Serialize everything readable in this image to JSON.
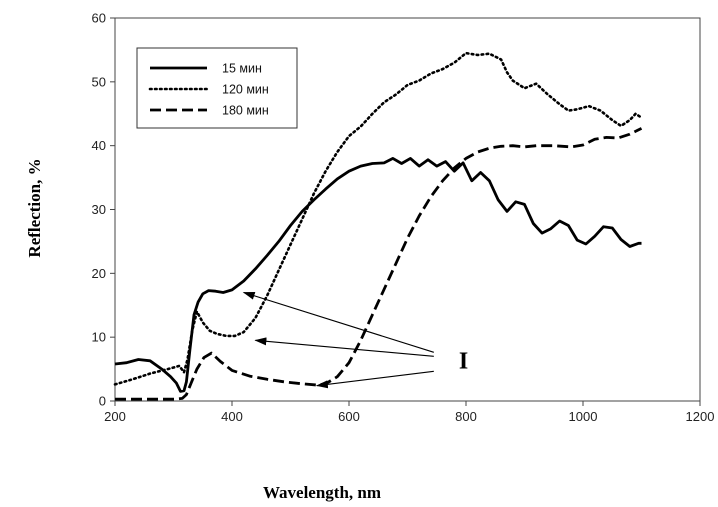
{
  "chart_data": {
    "type": "line",
    "xlabel": "Wavelength, nm",
    "ylabel": "Reflection, %",
    "xlim": [
      200,
      1200
    ],
    "ylim": [
      0,
      60
    ],
    "xticks": [
      200,
      400,
      600,
      800,
      1000,
      1200
    ],
    "yticks": [
      0,
      10,
      20,
      30,
      40,
      50,
      60
    ],
    "grid": false,
    "legend_position": "top-left",
    "annotation": {
      "label": "I",
      "arrow_origin": [
        745,
        7
      ],
      "arrow_targets": [
        [
          420,
          17
        ],
        [
          440,
          9.5
        ],
        [
          545,
          2.4
        ]
      ]
    },
    "series": [
      {
        "name": "15 мин",
        "style": "solid",
        "x": [
          200,
          220,
          240,
          260,
          280,
          295,
          305,
          312,
          318,
          322,
          328,
          335,
          342,
          350,
          360,
          372,
          385,
          400,
          420,
          440,
          460,
          480,
          500,
          520,
          540,
          560,
          580,
          600,
          620,
          640,
          660,
          675,
          690,
          705,
          720,
          735,
          750,
          765,
          780,
          795,
          810,
          825,
          840,
          855,
          870,
          885,
          900,
          915,
          930,
          945,
          960,
          975,
          990,
          1005,
          1020,
          1035,
          1050,
          1065,
          1080,
          1095,
          1100
        ],
        "values": [
          5.8,
          6.0,
          6.5,
          6.3,
          5.0,
          3.8,
          2.8,
          1.5,
          1.6,
          3.0,
          8.0,
          13.5,
          15.5,
          16.8,
          17.3,
          17.2,
          17.0,
          17.4,
          18.8,
          20.7,
          22.8,
          25.0,
          27.5,
          29.7,
          31.5,
          33.2,
          34.8,
          36.0,
          36.8,
          37.2,
          37.3,
          38.0,
          37.2,
          38.0,
          36.8,
          37.8,
          36.8,
          37.5,
          36.0,
          37.3,
          34.5,
          35.8,
          34.5,
          31.5,
          29.7,
          31.2,
          30.8,
          27.8,
          26.3,
          27.0,
          28.2,
          27.5,
          25.2,
          24.6,
          25.8,
          27.3,
          27.1,
          25.3,
          24.2,
          24.7,
          24.7
        ]
      },
      {
        "name": "120 мин",
        "style": "dotted",
        "x": [
          200,
          230,
          260,
          290,
          310,
          318,
          324,
          332,
          340,
          350,
          362,
          375,
          390,
          405,
          420,
          440,
          460,
          480,
          500,
          520,
          540,
          560,
          580,
          600,
          620,
          640,
          660,
          680,
          700,
          720,
          740,
          760,
          780,
          800,
          820,
          840,
          860,
          870,
          880,
          900,
          920,
          940,
          960,
          975,
          990,
          1010,
          1030,
          1050,
          1065,
          1080,
          1090,
          1100
        ],
        "values": [
          2.6,
          3.4,
          4.3,
          5.0,
          5.5,
          4.5,
          6.5,
          11.0,
          14.0,
          12.3,
          11.0,
          10.5,
          10.2,
          10.2,
          10.8,
          13.0,
          16.5,
          20.5,
          24.5,
          28.5,
          32.5,
          36.0,
          39.0,
          41.5,
          43.0,
          45.0,
          46.8,
          48.0,
          49.5,
          50.2,
          51.3,
          52.0,
          53.0,
          54.5,
          54.2,
          54.4,
          53.5,
          51.5,
          50.2,
          49.0,
          49.7,
          48.0,
          46.5,
          45.5,
          45.7,
          46.2,
          45.5,
          44.0,
          43.1,
          44.0,
          45.0,
          44.4
        ]
      },
      {
        "name": "180 мин",
        "style": "dashed",
        "x": [
          200,
          240,
          280,
          305,
          315,
          322,
          330,
          340,
          352,
          365,
          380,
          400,
          430,
          460,
          490,
          520,
          545,
          560,
          580,
          600,
          620,
          640,
          660,
          680,
          700,
          720,
          740,
          760,
          780,
          800,
          820,
          840,
          860,
          880,
          900,
          920,
          950,
          980,
          1000,
          1020,
          1040,
          1060,
          1080,
          1100
        ],
        "values": [
          0.3,
          0.3,
          0.3,
          0.3,
          0.4,
          1.0,
          2.8,
          5.0,
          6.8,
          7.5,
          6.2,
          4.8,
          3.9,
          3.4,
          3.0,
          2.7,
          2.5,
          2.7,
          3.8,
          6.0,
          9.5,
          13.5,
          17.5,
          21.5,
          25.5,
          29.0,
          32.0,
          34.5,
          36.5,
          38.0,
          39.0,
          39.6,
          39.9,
          40.0,
          39.8,
          40.0,
          40.0,
          39.8,
          40.1,
          41.0,
          41.3,
          41.2,
          41.8,
          42.7
        ]
      }
    ]
  }
}
